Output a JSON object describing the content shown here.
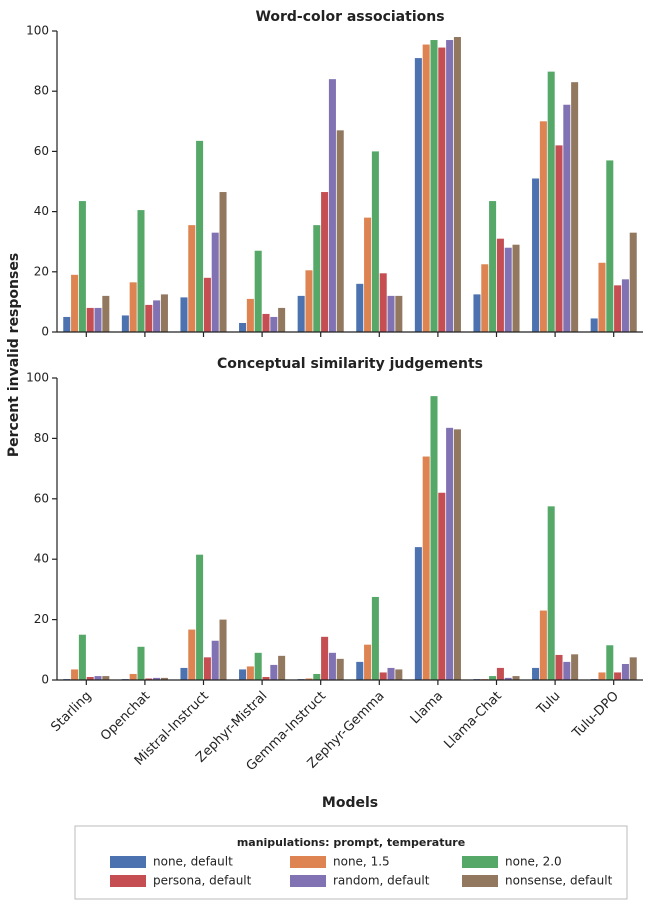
{
  "ylabel": "Percent invalid responses",
  "legend_title": "manipulations: prompt, temperature",
  "chart_data": [
    {
      "type": "bar",
      "title": "Word-color associations",
      "ylim": [
        0,
        100
      ],
      "yticks": [
        0,
        20,
        40,
        60,
        80,
        100
      ],
      "series": [
        {
          "name": "none, default",
          "color": "#4c72b0",
          "values": [
            5,
            5.5,
            11.5,
            3,
            12,
            16,
            91,
            12.5,
            51,
            4.5
          ]
        },
        {
          "name": "none, 1.5",
          "color": "#dd8452",
          "values": [
            19,
            16.5,
            35.5,
            11,
            20.5,
            38,
            95.5,
            22.5,
            70,
            23
          ]
        },
        {
          "name": "none, 2.0",
          "color": "#55a868",
          "values": [
            43.5,
            40.5,
            63.5,
            27,
            35.5,
            60,
            97,
            43.5,
            86.5,
            57
          ]
        },
        {
          "name": "persona, default",
          "color": "#c44e52",
          "values": [
            8,
            9,
            18,
            6,
            46.5,
            19.5,
            94.5,
            31,
            62,
            15.5
          ]
        },
        {
          "name": "random, default",
          "color": "#8172b3",
          "values": [
            8,
            10.5,
            33,
            5,
            84,
            12,
            97,
            28,
            75.5,
            17.5
          ]
        },
        {
          "name": "nonsense, default",
          "color": "#937860",
          "values": [
            12,
            12.5,
            46.5,
            8,
            67,
            12,
            98,
            29,
            83,
            33
          ]
        }
      ]
    },
    {
      "type": "bar",
      "title": "Conceptual similarity judgements",
      "xlabel": "Models",
      "categories": [
        "Starling",
        "Openchat",
        "Mistral-Instruct",
        "Zephyr-Mistral",
        "Gemma-Instruct",
        "Zephyr-Gemma",
        "Llama",
        "Llama-Chat",
        "Tulu",
        "Tulu-DPO"
      ],
      "ylim": [
        0,
        100
      ],
      "yticks": [
        0,
        20,
        40,
        60,
        80,
        100
      ],
      "series": [
        {
          "color": "#4c72b0",
          "values": [
            0.3,
            0.3,
            4,
            3.5,
            0.3,
            6,
            44,
            0.3,
            4,
            0.3
          ]
        },
        {
          "color": "#dd8452",
          "values": [
            3.5,
            2,
            16.7,
            4.5,
            0.5,
            11.7,
            74,
            0.3,
            23,
            2.5
          ]
        },
        {
          "color": "#55a868",
          "values": [
            15,
            11,
            41.5,
            9,
            2,
            27.5,
            94,
            1.3,
            57.5,
            11.5
          ]
        },
        {
          "color": "#c44e52",
          "values": [
            1,
            0.5,
            7.5,
            1,
            14.3,
            2.5,
            62,
            4,
            8.3,
            2.5
          ]
        },
        {
          "color": "#8172b3",
          "values": [
            1.3,
            0.7,
            13,
            5,
            9,
            4,
            83.5,
            0.7,
            6,
            5.3
          ]
        },
        {
          "color": "#937860",
          "values": [
            1.3,
            0.7,
            20,
            8,
            7,
            3.5,
            83,
            1.3,
            8.5,
            7.5
          ]
        }
      ]
    }
  ]
}
